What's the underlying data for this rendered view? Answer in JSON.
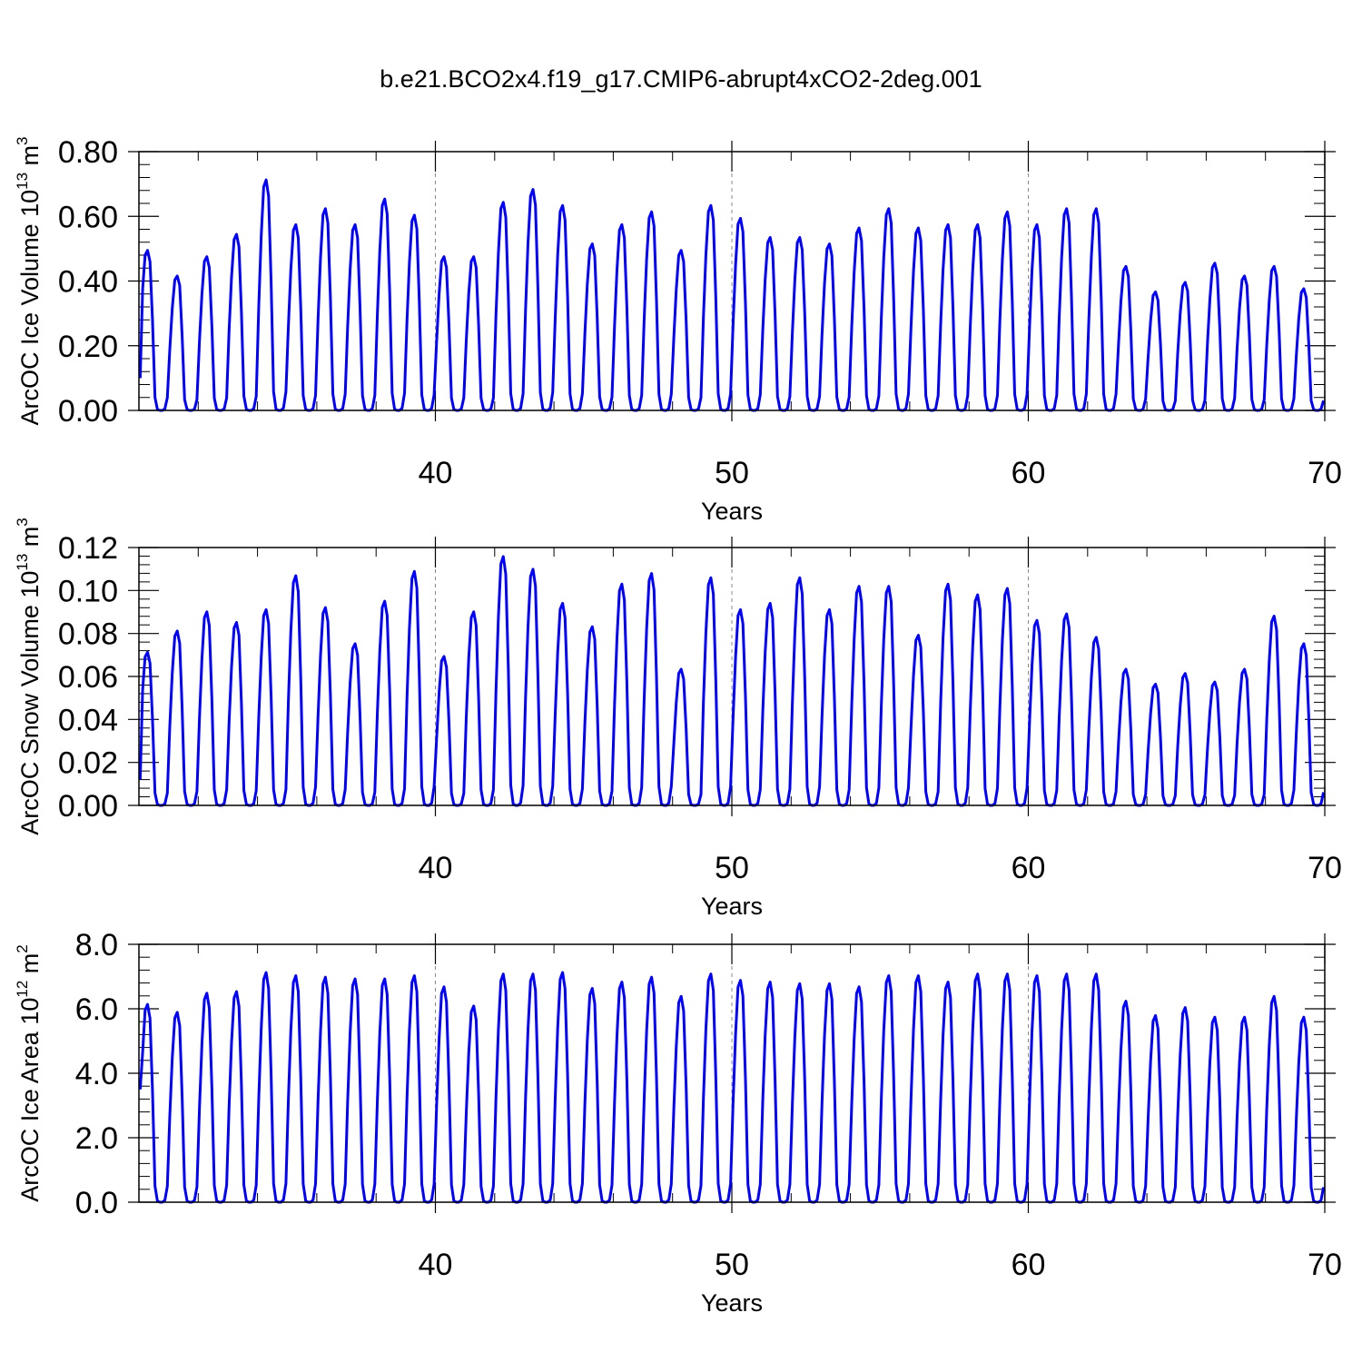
{
  "title": "b.e21.BCO2x4.f19_g17.CMIP6-abrupt4xCO2-2deg.001",
  "line_color": "#0000ff",
  "chart_data": [
    {
      "type": "line",
      "title": "b.e21.BCO2x4.f19_g17.CMIP6-abrupt4xCO2-2deg.001",
      "xlabel": "Years",
      "ylabel": "ArcOC Ice Volume 10",
      "ylabel_exp": "13",
      "ylabel_unit": "m",
      "ylabel_unit_exp": "3",
      "xlim": [
        30,
        70
      ],
      "ylim": [
        0,
        0.8
      ],
      "xticks": [
        40,
        50,
        60,
        70
      ],
      "yticks": [
        "0.00",
        "0.20",
        "0.40",
        "0.60",
        "0.80"
      ],
      "ytick_values": [
        0,
        0.2,
        0.4,
        0.6,
        0.8
      ],
      "grid_x": [
        40,
        50,
        60
      ],
      "start_value": 0.1,
      "annual_max": [
        0.5,
        0.42,
        0.48,
        0.55,
        0.72,
        0.58,
        0.63,
        0.58,
        0.66,
        0.61,
        0.48,
        0.48,
        0.65,
        0.69,
        0.64,
        0.52,
        0.58,
        0.62,
        0.5,
        0.64,
        0.6,
        0.54,
        0.54,
        0.52,
        0.57,
        0.63,
        0.57,
        0.58,
        0.58,
        0.62,
        0.58,
        0.63,
        0.63,
        0.45,
        0.37,
        0.4,
        0.46,
        0.42,
        0.45,
        0.38
      ]
    },
    {
      "type": "line",
      "xlabel": "Years",
      "ylabel": "ArcOC Snow Volume 10",
      "ylabel_exp": "13",
      "ylabel_unit": "m",
      "ylabel_unit_exp": "3",
      "xlim": [
        30,
        70
      ],
      "ylim": [
        0,
        0.12
      ],
      "xticks": [
        40,
        50,
        60,
        70
      ],
      "yticks": [
        "0.00",
        "0.02",
        "0.04",
        "0.06",
        "0.08",
        "0.10",
        "0.12"
      ],
      "ytick_values": [
        0,
        0.02,
        0.04,
        0.06,
        0.08,
        0.1,
        0.12
      ],
      "grid_x": [
        40,
        50,
        60
      ],
      "start_value": 0.012,
      "annual_max": [
        0.072,
        0.082,
        0.091,
        0.086,
        0.092,
        0.108,
        0.093,
        0.076,
        0.096,
        0.11,
        0.07,
        0.091,
        0.117,
        0.111,
        0.095,
        0.084,
        0.104,
        0.109,
        0.064,
        0.107,
        0.092,
        0.095,
        0.107,
        0.092,
        0.103,
        0.103,
        0.08,
        0.104,
        0.099,
        0.102,
        0.087,
        0.09,
        0.079,
        0.064,
        0.057,
        0.062,
        0.058,
        0.064,
        0.089,
        0.076
      ]
    },
    {
      "type": "line",
      "xlabel": "Years",
      "ylabel": "ArcOC Ice Area 10",
      "ylabel_exp": "12",
      "ylabel_unit": "m",
      "ylabel_unit_exp": "2",
      "xlim": [
        30,
        70
      ],
      "ylim": [
        0,
        8
      ],
      "xticks": [
        40,
        50,
        60,
        70
      ],
      "yticks": [
        "0.0",
        "2.0",
        "4.0",
        "6.0",
        "8.0"
      ],
      "ytick_values": [
        0,
        2,
        4,
        6,
        8
      ],
      "grid_x": [
        40,
        50,
        60
      ],
      "start_value": 3.5,
      "annual_max": [
        6.2,
        5.95,
        6.55,
        6.6,
        7.2,
        7.1,
        7.05,
        7.0,
        7.0,
        7.1,
        6.75,
        6.15,
        7.15,
        7.15,
        7.2,
        6.7,
        6.9,
        7.05,
        6.45,
        7.15,
        6.95,
        6.9,
        6.85,
        6.85,
        6.75,
        7.1,
        7.1,
        6.9,
        7.15,
        7.15,
        7.1,
        7.15,
        7.15,
        6.3,
        5.85,
        6.1,
        5.8,
        5.8,
        6.45,
        5.8
      ]
    }
  ]
}
